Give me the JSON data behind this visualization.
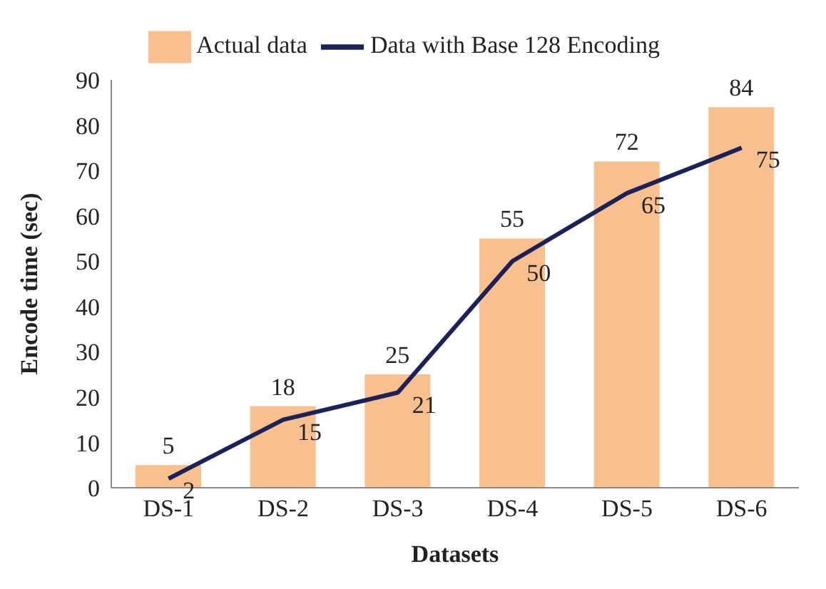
{
  "chart_data": {
    "type": "bar",
    "xlabel": "Datasets",
    "ylabel": "Encode time (sec)",
    "categories": [
      "DS-1",
      "DS-2",
      "DS-3",
      "DS-4",
      "DS-5",
      "DS-6"
    ],
    "series": [
      {
        "name": "Actual data",
        "color": "#f9c08f",
        "values": [
          5,
          18,
          25,
          55,
          72,
          84
        ]
      },
      {
        "name": "Data with Base 128 Encoding",
        "type": "line",
        "color": "#1c2157",
        "values": [
          2,
          15,
          21,
          50,
          65,
          75
        ]
      }
    ],
    "ylim": [
      0,
      90
    ],
    "yticks": [
      0,
      10,
      20,
      30,
      40,
      50,
      60,
      70,
      80,
      90
    ],
    "grid": false,
    "legend": "top",
    "marker": "none",
    "line_style": "solid",
    "data_labels": true
  }
}
